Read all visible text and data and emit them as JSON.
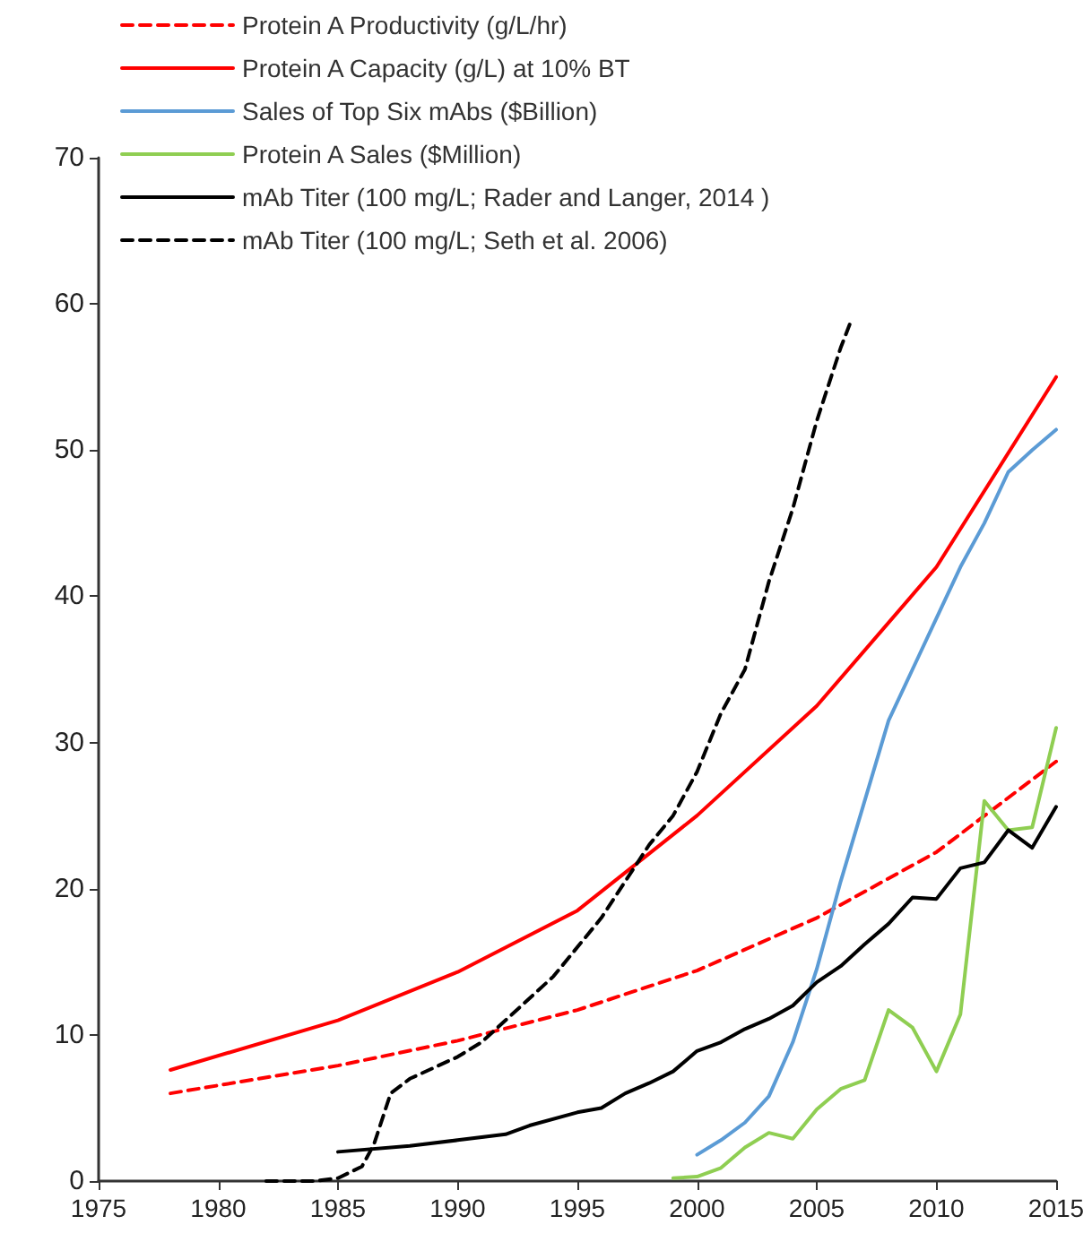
{
  "chart_data": {
    "type": "line",
    "xlim": [
      1975,
      2015
    ],
    "xticks": [
      1975,
      1980,
      1985,
      1990,
      1995,
      2000,
      2005,
      2010,
      2015
    ],
    "ylim": [
      0,
      70
    ],
    "yticks": [
      0,
      10,
      20,
      30,
      40,
      50,
      60,
      70
    ],
    "grid": false,
    "legend": "top left",
    "marker": "none",
    "series": [
      {
        "name": "Protein A Productivity (g/L/hr)",
        "color": "#ff0000",
        "line_style": "dashed",
        "x": [
          1978,
          1985,
          1990,
          1995,
          2000,
          2005,
          2010,
          2015
        ],
        "values": [
          6.0,
          7.9,
          9.6,
          11.7,
          14.4,
          18.0,
          22.5,
          28.7
        ]
      },
      {
        "name": "Protein A Capacity (g/L) at 10% BT",
        "color": "#ff0000",
        "line_style": "solid",
        "x": [
          1978,
          1985,
          1990,
          1995,
          2000,
          2005,
          2010,
          2015
        ],
        "values": [
          7.6,
          11.0,
          14.3,
          18.5,
          25.0,
          32.5,
          42.0,
          55.0
        ]
      },
      {
        "name": "Sales of Top Six mAbs ($Billion)",
        "color": "#5b9bd5",
        "line_style": "solid",
        "x": [
          2000,
          2001,
          2002,
          2003,
          2004,
          2005,
          2006,
          2007,
          2008,
          2009,
          2010,
          2011,
          2012,
          2013,
          2014,
          2015
        ],
        "values": [
          1.8,
          2.8,
          4.0,
          5.8,
          9.5,
          14.5,
          20.5,
          26.0,
          31.5,
          35.0,
          38.5,
          42.0,
          45.0,
          48.5,
          50.0,
          51.4
        ]
      },
      {
        "name": "Protein A Sales ($Million)",
        "color": "#8fce52",
        "line_style": "solid",
        "x": [
          1999,
          2000,
          2001,
          2002,
          2003,
          2004,
          2005,
          2006,
          2007,
          2008,
          2009,
          2010,
          2011,
          2012,
          2013,
          2014,
          2015
        ],
        "values": [
          0.2,
          0.3,
          0.9,
          2.3,
          3.3,
          2.9,
          4.9,
          6.3,
          6.9,
          11.7,
          10.5,
          7.5,
          11.4,
          26.0,
          24.0,
          24.2,
          31.0
        ]
      },
      {
        "name": "mAb Titer (100 mg/L; Rader and Langer, 2014 )",
        "color": "#000000",
        "line_style": "solid",
        "x": [
          1985,
          1988,
          1990,
          1992,
          1993,
          1995,
          1996,
          1997,
          1998,
          1999,
          2000,
          2001,
          2002,
          2003,
          2004,
          2005,
          2006,
          2007,
          2008,
          2009,
          2010,
          2011,
          2012,
          2013,
          2014,
          2015
        ],
        "values": [
          2.0,
          2.4,
          2.8,
          3.2,
          3.8,
          4.7,
          5.0,
          6.0,
          6.7,
          7.5,
          8.9,
          9.5,
          10.4,
          11.1,
          12.0,
          13.6,
          14.7,
          16.2,
          17.6,
          19.4,
          19.3,
          21.4,
          21.8,
          24.0,
          22.8,
          25.6
        ]
      },
      {
        "name": "mAb Titer (100 mg/L; Seth et al. 2006)",
        "color": "#000000",
        "line_style": "dashed",
        "x": [
          1982,
          1984,
          1985,
          1986,
          1986.5,
          1987,
          1987.2,
          1988,
          1990,
          1991,
          1992,
          1994,
          1996,
          1998,
          1999,
          2000,
          2001,
          2002,
          2003,
          2004,
          2005,
          2006,
          2006.4
        ],
        "values": [
          0,
          0,
          0.2,
          1.0,
          2.5,
          5.0,
          6.0,
          7.0,
          8.5,
          9.5,
          11.0,
          14.0,
          18.0,
          23.0,
          25.0,
          28.0,
          32.0,
          35.0,
          41.0,
          46.0,
          52.0,
          57.0,
          58.7
        ]
      }
    ]
  }
}
